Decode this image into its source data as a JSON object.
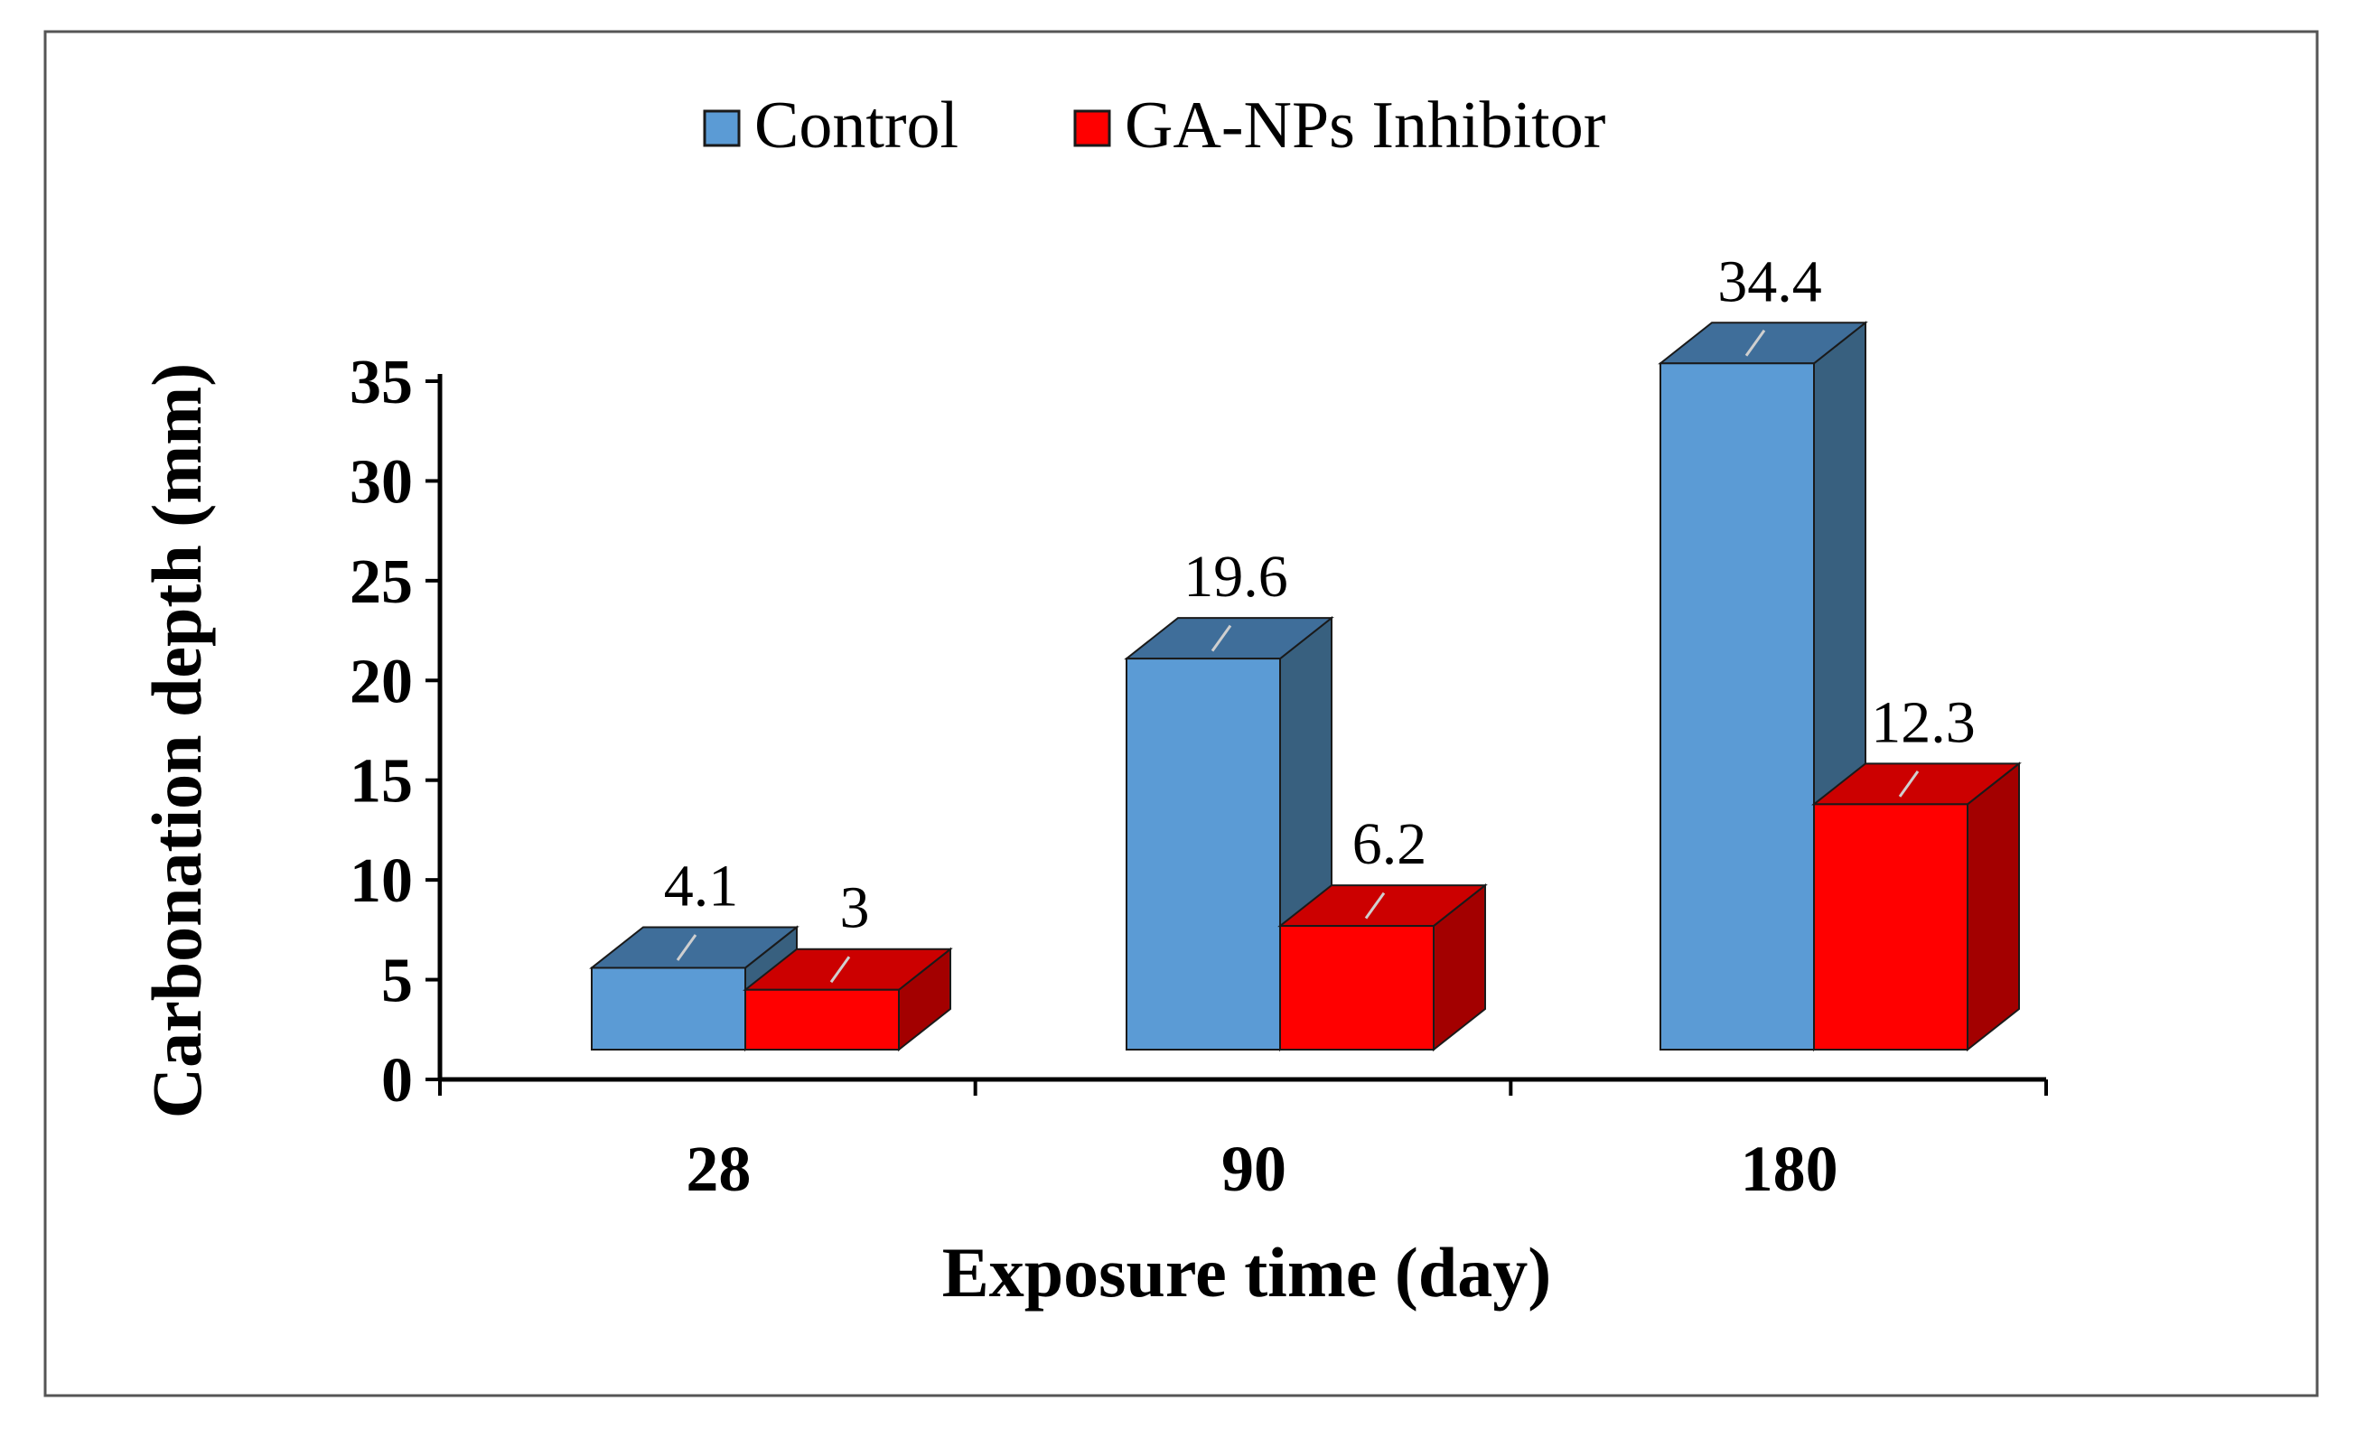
{
  "chart_data": {
    "type": "bar",
    "style": "3d-clustered",
    "categories": [
      "28",
      "90",
      "180"
    ],
    "series": [
      {
        "name": "Control",
        "values": [
          4.1,
          19.6,
          34.4
        ],
        "data_labels": [
          "4.1",
          "19.6",
          "34.4"
        ],
        "color": "#5b9bd5",
        "top_color": "#3f6e9a",
        "side_color": "#38607f"
      },
      {
        "name": "GA-NPs Inhibitor",
        "values": [
          3,
          6.2,
          12.3
        ],
        "data_labels": [
          "3",
          "6.2",
          "12.3"
        ],
        "color": "#ff0000",
        "top_color": "#cc0000",
        "side_color": "#a30000"
      }
    ],
    "title": "",
    "xlabel": "Exposure time (day)",
    "ylabel": "Carbonation depth (mm)",
    "ylim": [
      0,
      35
    ],
    "yticks": [
      "0",
      "5",
      "10",
      "15",
      "20",
      "25",
      "30",
      "35"
    ],
    "grid": false,
    "legend": "top-center"
  }
}
